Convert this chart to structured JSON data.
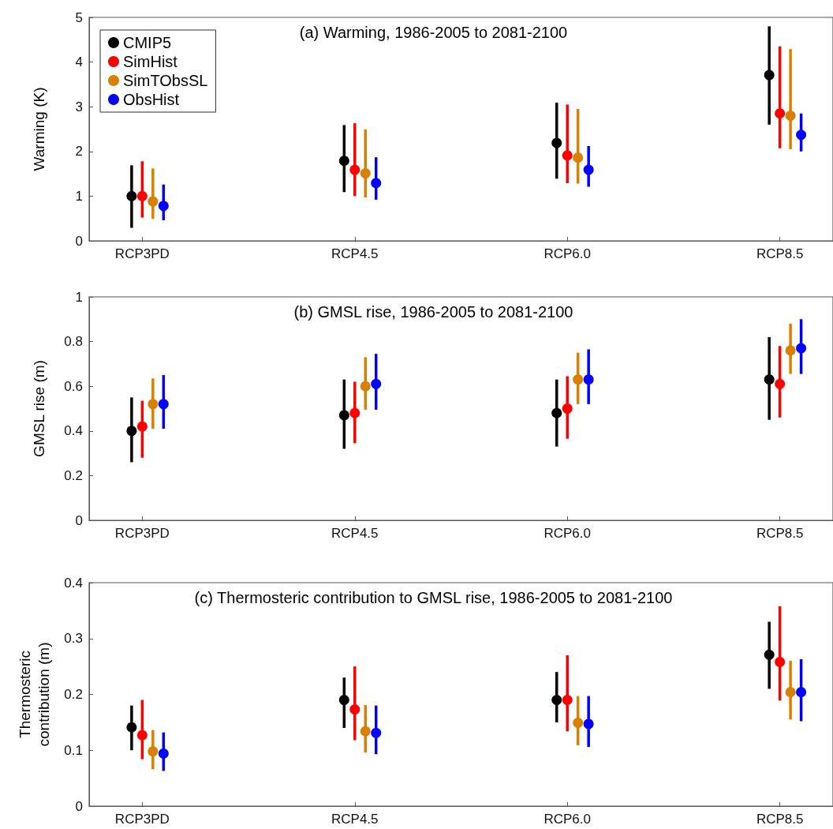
{
  "chart_data": [
    {
      "type": "scatter",
      "title": "(a) Warming, 1986-2005 to 2081-2100",
      "ylabel": "Warming (K)",
      "categories": [
        "RCP3PD",
        "RCP4.5",
        "RCP6.0",
        "RCP8.5"
      ],
      "ylim": [
        0,
        5
      ],
      "yticks": [
        0,
        1,
        2,
        3,
        4,
        5
      ],
      "grid": false,
      "marker": "circle",
      "legend": "top left",
      "series": [
        {
          "name": "CMIP5",
          "color": "#000000",
          "values": [
            1.0,
            1.79,
            2.19,
            3.71
          ],
          "errors": [
            [
              0.29,
              1.69
            ],
            [
              1.09,
              2.59
            ],
            [
              1.39,
              3.09
            ],
            [
              2.6,
              4.8
            ]
          ]
        },
        {
          "name": "SimHist",
          "color": "#ff0000",
          "values": [
            1.0,
            1.59,
            1.91,
            2.85
          ],
          "errors": [
            [
              0.52,
              1.78
            ],
            [
              1.0,
              2.63
            ],
            [
              1.29,
              3.05
            ],
            [
              2.07,
              4.35
            ]
          ]
        },
        {
          "name": "SimTObsSL",
          "color": "#d98000",
          "values": [
            0.88,
            1.51,
            1.86,
            2.8
          ],
          "errors": [
            [
              0.49,
              1.62
            ],
            [
              0.97,
              2.49
            ],
            [
              1.28,
              2.95
            ],
            [
              2.05,
              4.29
            ]
          ]
        },
        {
          "name": "ObsHist",
          "color": "#0000ff",
          "values": [
            0.78,
            1.29,
            1.59,
            2.37
          ],
          "errors": [
            [
              0.46,
              1.26
            ],
            [
              0.92,
              1.87
            ],
            [
              1.21,
              2.12
            ],
            [
              2.0,
              2.85
            ]
          ]
        }
      ]
    },
    {
      "type": "scatter",
      "title": "(b) GMSL rise, 1986-2005 to 2081-2100",
      "ylabel": "GMSL rise (m)",
      "categories": [
        "RCP3PD",
        "RCP4.5",
        "RCP6.0",
        "RCP8.5"
      ],
      "ylim": [
        0,
        1
      ],
      "yticks": [
        0,
        0.2,
        0.4,
        0.6,
        0.8,
        1
      ],
      "grid": false,
      "marker": "circle",
      "series": [
        {
          "color": "#000000",
          "values": [
            0.4,
            0.47,
            0.48,
            0.63
          ],
          "errors": [
            [
              0.26,
              0.55
            ],
            [
              0.32,
              0.63
            ],
            [
              0.33,
              0.63
            ],
            [
              0.45,
              0.82
            ]
          ]
        },
        {
          "color": "#ff0000",
          "values": [
            0.42,
            0.48,
            0.5,
            0.61
          ],
          "errors": [
            [
              0.28,
              0.535
            ],
            [
              0.345,
              0.62
            ],
            [
              0.365,
              0.645
            ],
            [
              0.46,
              0.78
            ]
          ]
        },
        {
          "color": "#d98000",
          "values": [
            0.52,
            0.6,
            0.63,
            0.76
          ],
          "errors": [
            [
              0.41,
              0.635
            ],
            [
              0.495,
              0.73
            ],
            [
              0.52,
              0.75
            ],
            [
              0.655,
              0.88
            ]
          ]
        },
        {
          "color": "#0000ff",
          "values": [
            0.52,
            0.61,
            0.63,
            0.77
          ],
          "errors": [
            [
              0.41,
              0.65
            ],
            [
              0.495,
              0.745
            ],
            [
              0.52,
              0.765
            ],
            [
              0.655,
              0.9
            ]
          ]
        }
      ]
    },
    {
      "type": "scatter",
      "title": "(c) Thermosteric contribution to GMSL rise, 1986-2005 to 2081-2100",
      "ylabel": "Thermosteric contribution (m)",
      "categories": [
        "RCP3PD",
        "RCP4.5",
        "RCP6.0",
        "RCP8.5"
      ],
      "ylim": [
        0,
        0.4
      ],
      "yticks": [
        0,
        0.1,
        0.2,
        0.3,
        0.4
      ],
      "grid": false,
      "marker": "circle",
      "series": [
        {
          "color": "#000000",
          "values": [
            0.141,
            0.19,
            0.19,
            0.271
          ],
          "errors": [
            [
              0.1,
              0.18
            ],
            [
              0.14,
              0.23
            ],
            [
              0.15,
              0.24
            ],
            [
              0.21,
              0.33
            ]
          ]
        },
        {
          "color": "#ff0000",
          "values": [
            0.127,
            0.173,
            0.19,
            0.258
          ],
          "errors": [
            [
              0.084,
              0.19
            ],
            [
              0.118,
              0.25
            ],
            [
              0.134,
              0.27
            ],
            [
              0.189,
              0.358
            ]
          ]
        },
        {
          "color": "#d98000",
          "values": [
            0.098,
            0.134,
            0.149,
            0.204
          ],
          "errors": [
            [
              0.066,
              0.136
            ],
            [
              0.096,
              0.181
            ],
            [
              0.109,
              0.197
            ],
            [
              0.155,
              0.26
            ]
          ]
        },
        {
          "color": "#0000ff",
          "values": [
            0.094,
            0.131,
            0.147,
            0.204
          ],
          "errors": [
            [
              0.063,
              0.132
            ],
            [
              0.093,
              0.18
            ],
            [
              0.106,
              0.197
            ],
            [
              0.152,
              0.263
            ]
          ]
        }
      ]
    }
  ]
}
